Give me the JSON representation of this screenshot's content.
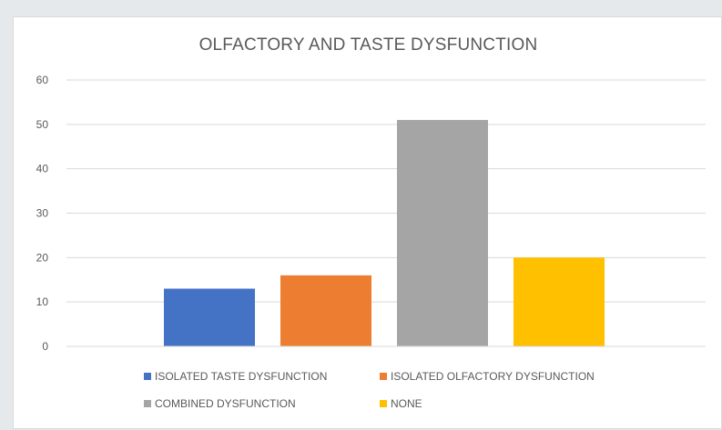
{
  "chart_data": {
    "type": "bar",
    "title": "OLFACTORY AND TASTE DYSFUNCTION",
    "xlabel": "",
    "ylabel": "",
    "categories": [
      "ISOLATED TASTE DYSFUNCTION",
      "ISOLATED OLFACTORY DYSFUNCTION",
      "COMBINED DYSFUNCTION",
      "NONE"
    ],
    "values": [
      13,
      16,
      51,
      20
    ],
    "colors": [
      "#4472c4",
      "#ed7d31",
      "#a5a5a5",
      "#ffc000"
    ],
    "ylim": [
      0,
      60
    ],
    "yticks": [
      "0",
      "10",
      "20",
      "30",
      "40",
      "50",
      "60"
    ],
    "grid": true,
    "legend_position": "bottom"
  }
}
